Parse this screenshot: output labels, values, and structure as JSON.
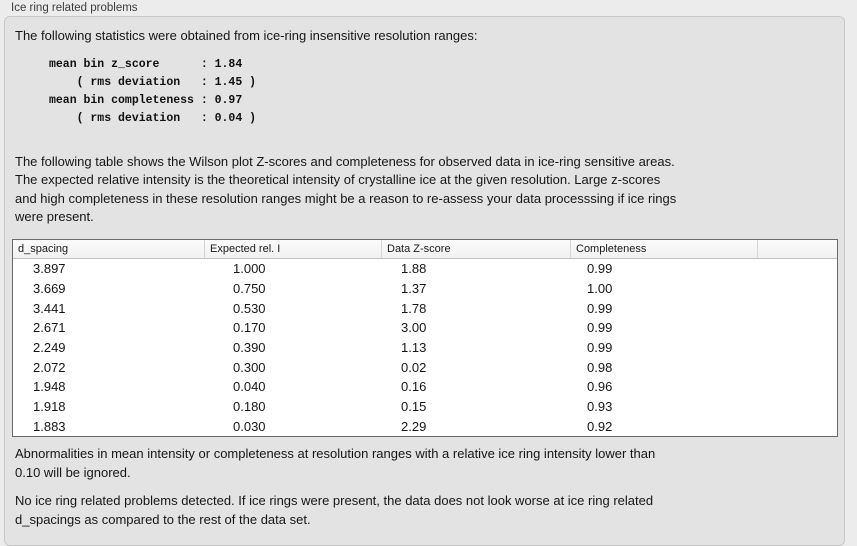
{
  "panel": {
    "label": "Ice ring related problems"
  },
  "intro": {
    "text": "The following statistics were obtained from ice-ring insensitive resolution ranges:"
  },
  "stats": {
    "lines": [
      "mean bin z_score      : 1.84",
      "    ( rms deviation   : 1.45 )",
      "mean bin completeness : 0.97",
      "    ( rms deviation   : 0.04 )"
    ]
  },
  "description": {
    "lines": [
      "The following table shows the Wilson plot Z-scores and completeness for observed data in ice-ring sensitive areas.",
      "The expected relative intensity is the theoretical intensity of crystalline ice at the given resolution. Large z-scores",
      "and high completeness in these resolution ranges might be a reason to re-assess your data processsing if ice rings",
      "were present."
    ]
  },
  "table": {
    "headers": [
      "d_spacing",
      "Expected rel. I",
      "Data Z-score",
      "Completeness",
      ""
    ],
    "rows": [
      {
        "d_spacing": "3.897",
        "expected_rel_i": "1.000",
        "data_z_score": "1.88",
        "completeness": "0.99"
      },
      {
        "d_spacing": "3.669",
        "expected_rel_i": "0.750",
        "data_z_score": "1.37",
        "completeness": "1.00"
      },
      {
        "d_spacing": "3.441",
        "expected_rel_i": "0.530",
        "data_z_score": "1.78",
        "completeness": "0.99"
      },
      {
        "d_spacing": "2.671",
        "expected_rel_i": "0.170",
        "data_z_score": "3.00",
        "completeness": "0.99"
      },
      {
        "d_spacing": "2.249",
        "expected_rel_i": "0.390",
        "data_z_score": "1.13",
        "completeness": "0.99"
      },
      {
        "d_spacing": "2.072",
        "expected_rel_i": "0.300",
        "data_z_score": "0.02",
        "completeness": "0.98"
      },
      {
        "d_spacing": "1.948",
        "expected_rel_i": "0.040",
        "data_z_score": "0.16",
        "completeness": "0.96"
      },
      {
        "d_spacing": "1.918",
        "expected_rel_i": "0.180",
        "data_z_score": "0.15",
        "completeness": "0.93"
      },
      {
        "d_spacing": "1.883",
        "expected_rel_i": "0.030",
        "data_z_score": "2.29",
        "completeness": "0.92"
      }
    ]
  },
  "ignore_note": {
    "lines": [
      "Abnormalities in mean intensity or completeness at resolution ranges with a relative ice ring intensity lower than",
      "0.10 will be ignored."
    ]
  },
  "conclusion": {
    "lines": [
      "No ice ring related problems detected. If ice rings were present, the data does not look worse at ice ring related",
      "d_spacings as compared to the rest of the data set."
    ]
  },
  "colors": {
    "page_bg": "#ececec",
    "panel_bg": "#e3e3e3",
    "table_border": "#6a6a6a"
  }
}
